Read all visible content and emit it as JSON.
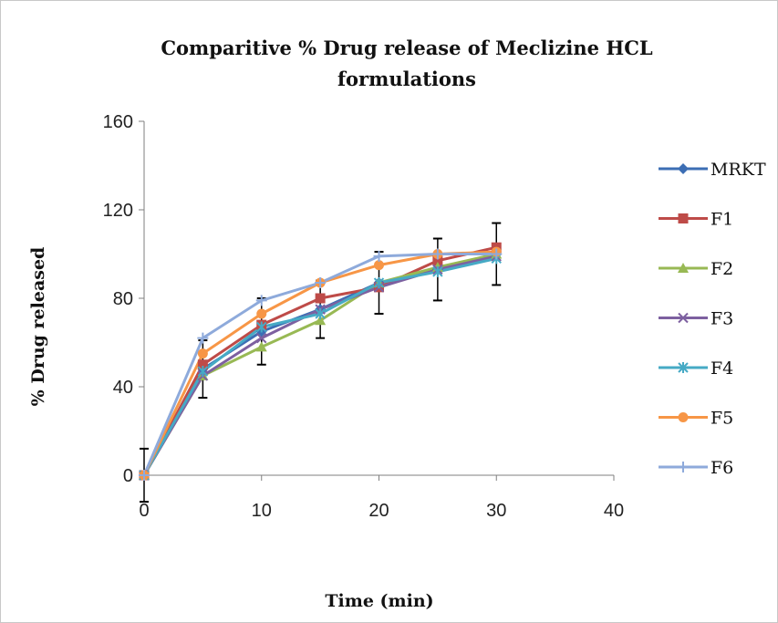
{
  "chart_data": {
    "type": "line",
    "title": [
      "Comparitive % Drug release of  Meclizine HCL",
      "formulations"
    ],
    "xlabel": "Time (min)",
    "ylabel": "% Drug released",
    "xlim": [
      0,
      40
    ],
    "ylim": [
      0,
      160
    ],
    "xticks": [
      "0",
      "10",
      "20",
      "30",
      "40"
    ],
    "yticks": [
      "0",
      "40",
      "80",
      "120",
      "160"
    ],
    "grid": false,
    "legend_position": "right",
    "x": [
      0,
      5,
      10,
      15,
      20,
      25,
      30
    ],
    "series": [
      {
        "name": "MRKT",
        "color": "#3c6eb4",
        "marker": "diamond",
        "values": [
          0,
          48,
          65,
          75,
          87,
          93,
          100
        ],
        "error": [
          12,
          13,
          15,
          13,
          14,
          14,
          14
        ]
      },
      {
        "name": "F1",
        "color": "#be4b48",
        "marker": "square",
        "values": [
          0,
          50,
          68,
          80,
          85,
          97,
          103
        ],
        "error": [
          0,
          0,
          0,
          0,
          0,
          0,
          0
        ]
      },
      {
        "name": "F2",
        "color": "#98b954",
        "marker": "triangle",
        "values": [
          0,
          45,
          58,
          70,
          87,
          94,
          100
        ],
        "error": [
          0,
          0,
          0,
          0,
          0,
          0,
          0
        ]
      },
      {
        "name": "F3",
        "color": "#7d60a0",
        "marker": "x",
        "values": [
          0,
          45,
          62,
          75,
          85,
          93,
          99
        ],
        "error": [
          0,
          0,
          0,
          0,
          0,
          0,
          0
        ]
      },
      {
        "name": "F4",
        "color": "#46aac5",
        "marker": "star",
        "values": [
          0,
          47,
          67,
          73,
          87,
          92,
          98
        ],
        "error": [
          0,
          0,
          0,
          0,
          0,
          0,
          0
        ]
      },
      {
        "name": "F5",
        "color": "#f79646",
        "marker": "circle",
        "values": [
          0,
          55,
          73,
          87,
          95,
          100,
          101
        ],
        "error": [
          0,
          0,
          0,
          0,
          0,
          0,
          0
        ]
      },
      {
        "name": "F6",
        "color": "#8eaadb",
        "marker": "plus",
        "values": [
          0,
          62,
          79,
          87,
          99,
          100,
          100
        ],
        "error": [
          0,
          0,
          0,
          0,
          0,
          0,
          0
        ]
      }
    ]
  }
}
